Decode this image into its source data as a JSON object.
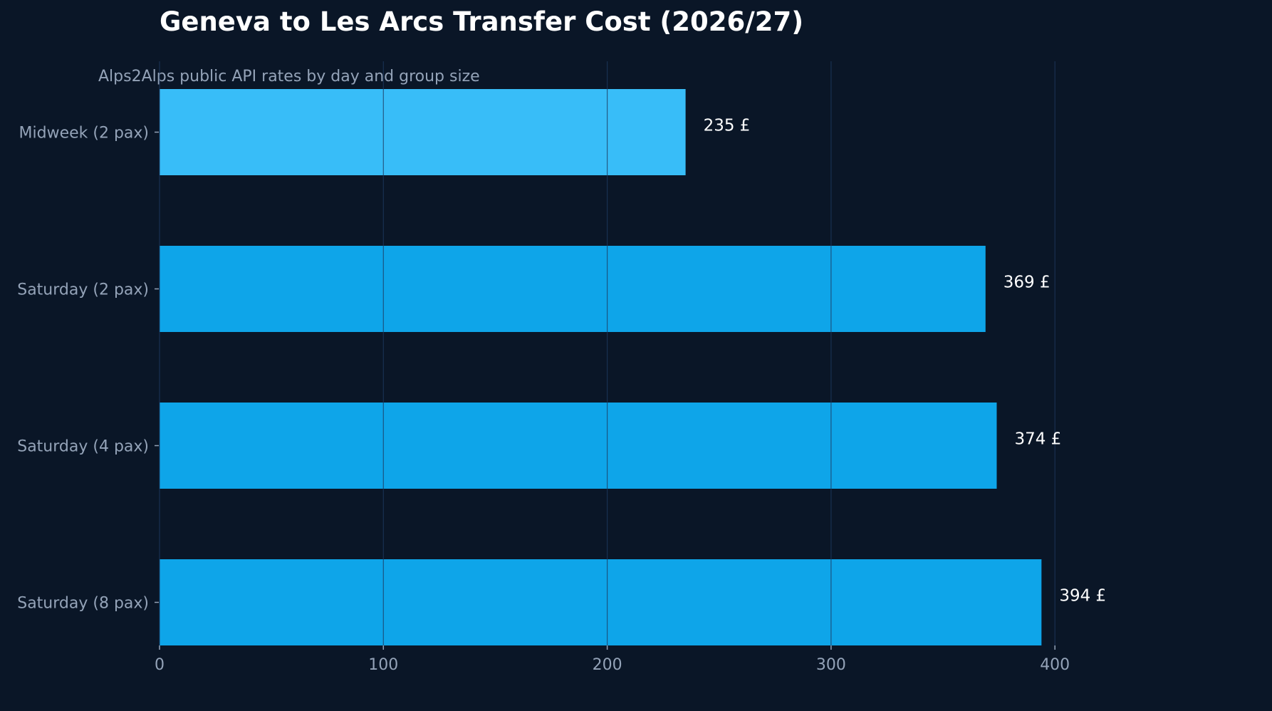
{
  "chart_data": {
    "type": "bar",
    "orientation": "horizontal",
    "title": "Geneva to Les Arcs Transfer Cost (2026/27)",
    "subtitle": "Alps2Alps public API rates by day and group size",
    "categories": [
      "Midweek (2 pax)",
      "Saturday (2 pax)",
      "Saturday (4 pax)",
      "Saturday (8 pax)"
    ],
    "values": [
      235,
      369,
      374,
      394
    ],
    "value_suffix": " £",
    "xlim": [
      0,
      490
    ],
    "xticks": [
      0,
      100,
      200,
      300,
      400
    ],
    "xlabel": "",
    "ylabel": "",
    "grid": "vertical",
    "legend": "none",
    "colors": {
      "background": "#0a1627",
      "highlight_bar": "#38bdf8",
      "bar": "#0ea5e9",
      "grid": "#1e3a5f",
      "axis_text": "#94a3b8",
      "value_text": "#ffffff",
      "title_text": "#ffffff"
    }
  }
}
